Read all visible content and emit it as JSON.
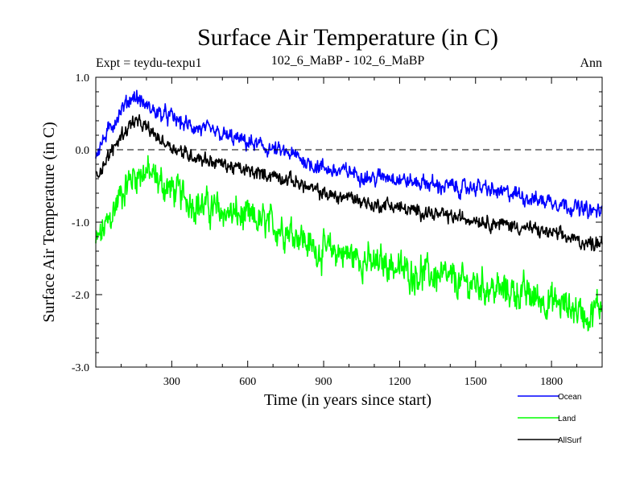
{
  "chart_data": {
    "type": "line",
    "title": "Surface Air Temperature (in C)",
    "subtitle_left": "Expt = teydu-texpu1",
    "subtitle_center": "102_6_MaBP - 102_6_MaBP",
    "subtitle_right": "Ann",
    "xlabel": "Time (in years since start)",
    "ylabel": "Surface Air Temperature (in C)",
    "xlim": [
      0,
      2000
    ],
    "ylim": [
      -3.0,
      1.0
    ],
    "x_ticks": [
      300,
      600,
      900,
      1200,
      1500,
      1800
    ],
    "x_tick_labels": [
      "300",
      "600",
      "900",
      "1200",
      "1500",
      "1800"
    ],
    "y_ticks": [
      1.0,
      0.0,
      -1.0,
      -2.0,
      -3.0
    ],
    "y_tick_labels": [
      "1.0",
      "0.0",
      "-1.0",
      "-2.0",
      "-3.0"
    ],
    "reference_line": 0.0,
    "legend_position": "bottom-right, below plot",
    "series": [
      {
        "name": "Ocean",
        "color": "#0000ff",
        "x": [
          0,
          50,
          100,
          150,
          200,
          250,
          300,
          350,
          400,
          450,
          500,
          550,
          600,
          650,
          700,
          750,
          800,
          850,
          900,
          950,
          1000,
          1050,
          1100,
          1150,
          1200,
          1250,
          1300,
          1350,
          1400,
          1450,
          1500,
          1550,
          1600,
          1650,
          1700,
          1750,
          1800,
          1850,
          1900,
          1950,
          2000
        ],
        "values": [
          -0.05,
          0.25,
          0.55,
          0.75,
          0.6,
          0.5,
          0.45,
          0.35,
          0.3,
          0.25,
          0.2,
          0.15,
          0.1,
          0.05,
          0.0,
          -0.05,
          -0.1,
          -0.2,
          -0.25,
          -0.3,
          -0.3,
          -0.35,
          -0.4,
          -0.35,
          -0.4,
          -0.45,
          -0.45,
          -0.5,
          -0.5,
          -0.55,
          -0.5,
          -0.55,
          -0.6,
          -0.6,
          -0.65,
          -0.7,
          -0.7,
          -0.75,
          -0.8,
          -0.85,
          -0.85
        ]
      },
      {
        "name": "Land",
        "color": "#00ff00",
        "x": [
          0,
          50,
          100,
          150,
          200,
          250,
          300,
          350,
          400,
          450,
          500,
          550,
          600,
          650,
          700,
          750,
          800,
          850,
          900,
          950,
          1000,
          1050,
          1100,
          1150,
          1200,
          1250,
          1300,
          1350,
          1400,
          1450,
          1500,
          1550,
          1600,
          1650,
          1700,
          1750,
          1800,
          1850,
          1900,
          1950,
          2000
        ],
        "values": [
          -1.3,
          -1.0,
          -0.6,
          -0.35,
          -0.3,
          -0.45,
          -0.55,
          -0.65,
          -0.75,
          -0.8,
          -0.85,
          -0.9,
          -0.95,
          -1.0,
          -1.05,
          -1.1,
          -1.15,
          -1.35,
          -1.4,
          -1.4,
          -1.45,
          -1.5,
          -1.6,
          -1.55,
          -1.65,
          -1.7,
          -1.7,
          -1.75,
          -1.8,
          -1.85,
          -1.85,
          -1.9,
          -1.95,
          -1.95,
          -2.0,
          -2.05,
          -2.1,
          -2.15,
          -2.2,
          -2.3,
          -2.1
        ]
      },
      {
        "name": "AllSurf",
        "color": "#000000",
        "x": [
          0,
          50,
          100,
          150,
          200,
          250,
          300,
          350,
          400,
          450,
          500,
          550,
          600,
          650,
          700,
          750,
          800,
          850,
          900,
          950,
          1000,
          1050,
          1100,
          1150,
          1200,
          1250,
          1300,
          1350,
          1400,
          1450,
          1500,
          1550,
          1600,
          1650,
          1700,
          1750,
          1800,
          1850,
          1900,
          1950,
          2000
        ],
        "values": [
          -0.35,
          -0.1,
          0.2,
          0.4,
          0.3,
          0.15,
          0.05,
          -0.05,
          -0.1,
          -0.15,
          -0.2,
          -0.25,
          -0.3,
          -0.33,
          -0.35,
          -0.4,
          -0.45,
          -0.55,
          -0.6,
          -0.65,
          -0.65,
          -0.7,
          -0.78,
          -0.75,
          -0.8,
          -0.85,
          -0.85,
          -0.9,
          -0.92,
          -0.95,
          -0.95,
          -1.0,
          -1.02,
          -1.05,
          -1.08,
          -1.12,
          -1.15,
          -1.2,
          -1.25,
          -1.3,
          -1.25
        ]
      }
    ]
  }
}
